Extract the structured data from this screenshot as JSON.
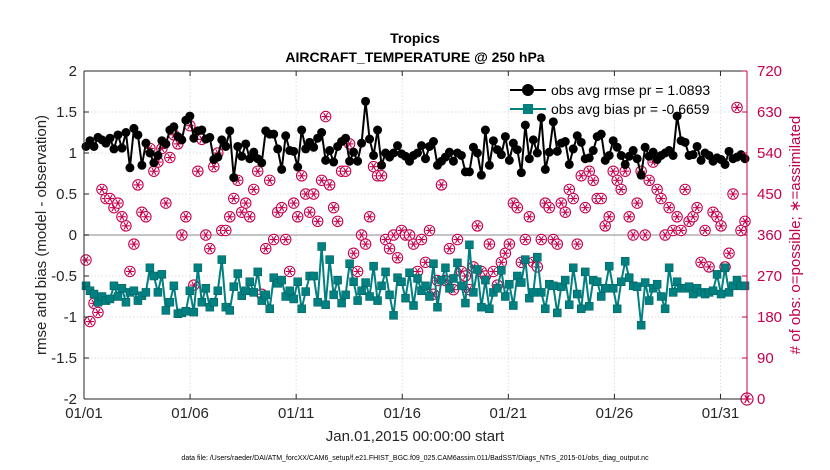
{
  "chart_data": {
    "type": "line",
    "title": "Tropics",
    "subtitle": "AIRCRAFT_TEMPERATURE @ 250 hPa",
    "xlabel": "Jan.01,2015 00:00:00 start",
    "ylabel": "rmse and bias (model - observation)",
    "ylabel_right": "# of obs: o=possible; ∗=assimilated",
    "footer": "data file: /Users/raeder/DAI/ATM_forcXX/CAM6_setup/f.e21.FHIST_BGC.f09_025.CAM6assim.011/BadSST/Diags_NTrS_2015-01/obs_diag_output.nc",
    "xlim": [
      0,
      31.25
    ],
    "ylim": [
      -2,
      2
    ],
    "ylim_right": [
      0,
      720
    ],
    "x_ticks": [
      0,
      5,
      10,
      15,
      20,
      25,
      30
    ],
    "x_tick_labels": [
      "01/01",
      "01/06",
      "01/11",
      "01/16",
      "01/21",
      "01/26",
      "01/31"
    ],
    "y_ticks": [
      -2,
      -1.5,
      -1,
      -0.5,
      0,
      0.5,
      1,
      1.5,
      2
    ],
    "y_tick_labels": [
      "-2",
      "-1.5",
      "-1",
      "-0.5",
      "0",
      "0.5",
      "1",
      "1.5",
      "2"
    ],
    "y_right_ticks": [
      0,
      90,
      180,
      270,
      360,
      450,
      540,
      630,
      720
    ],
    "y_right_tick_labels": [
      "0",
      "90",
      "180",
      "270",
      "360",
      "450",
      "540",
      "630",
      "720"
    ],
    "grid": true,
    "zero_line": true,
    "legend_position": "top-right",
    "colors": {
      "rmse": "#000000",
      "bias": "#008080",
      "obs": "#c4004e",
      "right_axis": "#c4004e",
      "zero_line": "#b0b0b0"
    },
    "series": [
      {
        "name": "obs avg rmse pr = 1.0893",
        "axis": "left",
        "marker": "circle",
        "values": [
          1.08,
          1.15,
          1.08,
          1.19,
          1.16,
          1.12,
          1.18,
          1.05,
          1.22,
          1.06,
          1.25,
          0.82,
          1.3,
          1.22,
          0.85,
          1.12,
          1.0,
          0.88,
          0.97,
          1.15,
          1.11,
          1.28,
          1.32,
          1.2,
          1.16,
          1.4,
          1.45,
          1.18,
          1.27,
          1.28,
          1.17,
          1.19,
          0.92,
          0.95,
          1.16,
          1.08,
          1.27,
          0.7,
          1.08,
          0.96,
          1.11,
          0.93,
          1.01,
          0.93,
          0.88,
          1.27,
          1.23,
          1.23,
          1.05,
          0.8,
          1.21,
          1.03,
          1.02,
          0.83,
          1.28,
          1.05,
          1.13,
          1.07,
          1.18,
          1.25,
          0.91,
          1.03,
          0.89,
          1.08,
          1.14,
          1.18,
          0.9,
          1.01,
          0.9,
          1.12,
          1.63,
          1.17,
          0.97,
          1.28,
          0.85,
          1.0,
          0.95,
          1.0,
          1.09,
          0.99,
          0.96,
          0.9,
          0.97,
          1.0,
          1.09,
          0.93,
          1.08,
          1.14,
          0.85,
          0.9,
          0.95,
          1.01,
          0.9,
          1.0,
          0.97,
          0.77,
          0.77,
          1.07,
          1.0,
          0.73,
          1.28,
          0.85,
          1.15,
          1.04,
          0.98,
          1.2,
          0.91,
          1.12,
          1.04,
          0.76,
          1.34,
          0.93,
          1.16,
          1.0,
          1.43,
          0.8,
          1.01,
          1.38,
          1.02,
          1.12,
          1.14,
          0.86,
          1.05,
          1.21,
          1.13,
          0.93,
          0.94,
          1.03,
          1.2,
          1.23,
          0.91,
          0.97,
          1.15,
          1.07,
          0.97,
          0.86,
          0.96,
          1.03,
          0.93,
          0.73,
          1.07,
          0.96,
          1.01,
          0.92,
          0.97,
          1.0,
          1.03,
          0.97,
          1.45,
          1.15,
          1.13,
          0.97,
          0.98,
          1.08,
          0.91,
          1.0,
          0.97,
          0.9,
          0.94,
          0.92,
          0.86,
          1.02,
          0.93,
          0.95,
          0.98,
          0.93
        ]
      },
      {
        "name": "obs avg bias pr = -0.6659",
        "axis": "left",
        "marker": "square",
        "values": [
          -0.62,
          -0.68,
          -0.72,
          -0.82,
          -0.75,
          -0.8,
          -0.78,
          -0.62,
          -0.75,
          -0.65,
          -0.82,
          -0.7,
          -0.68,
          -0.8,
          -0.74,
          -0.7,
          -0.4,
          -0.5,
          -0.7,
          -0.48,
          -0.92,
          -0.82,
          -0.62,
          -0.96,
          -0.95,
          -0.93,
          -0.68,
          -0.94,
          -0.4,
          -0.82,
          -0.65,
          -0.88,
          -0.82,
          -0.68,
          -0.3,
          -0.88,
          -0.92,
          -0.63,
          -0.47,
          -0.74,
          -0.68,
          -0.57,
          -0.7,
          -0.45,
          -0.8,
          -0.73,
          -0.9,
          -0.52,
          -0.59,
          -0.55,
          -0.75,
          -0.68,
          -0.78,
          -0.57,
          -0.9,
          -0.69,
          -0.5,
          -0.5,
          -0.82,
          -0.14,
          -0.85,
          -0.3,
          -0.73,
          -0.55,
          -0.83,
          -0.73,
          -0.35,
          -0.57,
          -0.8,
          -0.68,
          -0.58,
          -0.75,
          -0.38,
          -0.8,
          -0.62,
          -0.45,
          -0.73,
          -0.98,
          -0.52,
          -0.57,
          -0.77,
          -0.46,
          -0.86,
          -0.53,
          -0.68,
          -0.62,
          -0.75,
          -0.35,
          -0.88,
          -0.55,
          -0.4,
          -0.65,
          -0.53,
          -0.34,
          -0.62,
          -0.83,
          -0.12,
          -0.7,
          -0.42,
          -0.88,
          -0.55,
          -0.9,
          -0.7,
          -0.65,
          -0.43,
          -0.75,
          -0.6,
          -0.86,
          -0.5,
          -0.58,
          -0.3,
          -0.77,
          -0.7,
          -0.27,
          -0.7,
          -0.9,
          -0.6,
          -0.62,
          -0.95,
          -0.63,
          -0.55,
          -0.85,
          -0.4,
          -0.72,
          -0.9,
          -0.45,
          -0.87,
          -0.55,
          -0.57,
          -0.75,
          -0.65,
          -0.38,
          -0.65,
          -0.9,
          -0.57,
          -0.32,
          -0.52,
          -0.62,
          -0.63,
          -1.1,
          -0.58,
          -0.8,
          -0.65,
          -0.6,
          -0.75,
          -0.9,
          -0.4,
          -0.7,
          -0.57,
          -0.65,
          -0.65,
          -0.63,
          -0.72,
          -0.65,
          -0.7,
          -0.72,
          -0.7,
          -0.68,
          -0.48,
          -0.72,
          -0.4,
          -0.7,
          -0.62,
          -0.55,
          -0.62,
          -0.62
        ]
      },
      {
        "name": "# of obs possible / assimilated",
        "axis": "right",
        "marker": "circle-asterisk",
        "values": [
          305,
          170,
          210,
          190,
          460,
          440,
          440,
          420,
          430,
          400,
          380,
          280,
          340,
          470,
          410,
          400,
          550,
          500,
          520,
          550,
          430,
          530,
          580,
          560,
          360,
          400,
          600,
          250,
          500,
          570,
          360,
          330,
          510,
          540,
          370,
          370,
          400,
          440,
          480,
          410,
          430,
          400,
          460,
          500,
          230,
          330,
          480,
          350,
          410,
          420,
          350,
          280,
          430,
          400,
          490,
          450,
          410,
          450,
          390,
          480,
          620,
          470,
          420,
          390,
          500,
          500,
          560,
          320,
          280,
          360,
          340,
          400,
          510,
          490,
          490,
          350,
          330,
          360,
          310,
          370,
          360,
          360,
          340,
          280,
          350,
          300,
          370,
          230,
          260,
          470,
          260,
          330,
          240,
          350,
          280,
          270,
          240,
          290,
          380,
          280,
          270,
          340,
          280,
          250,
          300,
          320,
          340,
          430,
          420,
          300,
          350,
          400,
          300,
          290,
          350,
          430,
          420,
          350,
          340,
          430,
          410,
          460,
          440,
          340,
          490,
          420,
          500,
          480,
          440,
          440,
          380,
          400,
          500,
          480,
          460,
          500,
          400,
          360,
          430,
          500,
          360,
          480,
          520,
          460,
          440,
          360,
          420,
          370,
          400,
          370,
          460,
          390,
          400,
          420,
          300,
          370,
          290,
          410,
          400,
          380,
          290,
          320,
          450,
          640,
          370,
          390
        ]
      }
    ]
  }
}
